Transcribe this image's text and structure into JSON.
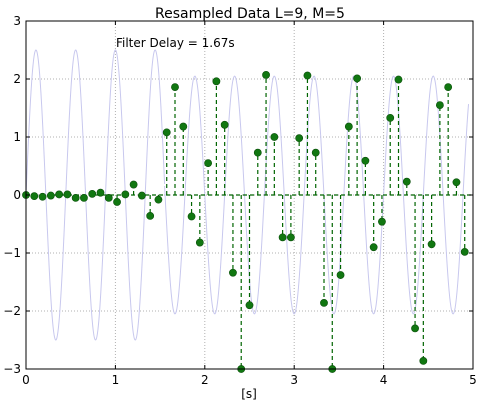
{
  "chart_data": {
    "type": "scatter",
    "title": "Resampled Data L=9, M=5",
    "xlabel": "[s]",
    "ylabel": "",
    "xlim": [
      0,
      5
    ],
    "ylim": [
      -3,
      3
    ],
    "xticks": [
      0,
      1,
      2,
      3,
      4,
      5
    ],
    "yticks": [
      -3,
      -2,
      -1,
      0,
      1,
      2,
      3
    ],
    "grid": true,
    "annotations": [
      {
        "text": "Filter Delay = 1.67s",
        "x": 1.67,
        "y": 2.55
      }
    ],
    "colors": {
      "input_signal": "#c8c8ee",
      "stems": "#006400",
      "markers": "#117711",
      "grid": "#b0b0b0"
    },
    "input_signal": {
      "amplitude": 2.5,
      "period_s": 0.4444,
      "x_start": 0,
      "x_end": 1.55
    },
    "input_signal_tail": {
      "amplitude": 2.05,
      "period_s": 0.4444,
      "x_start": 1.55,
      "x_end": 4.95
    },
    "x": [
      0.0,
      0.0926,
      0.1852,
      0.2778,
      0.3704,
      0.463,
      0.5556,
      0.6481,
      0.7407,
      0.8333,
      0.9259,
      1.0185,
      1.1111,
      1.2037,
      1.2963,
      1.3889,
      1.4815,
      1.5741,
      1.6667,
      1.7593,
      1.8519,
      1.9444,
      2.037,
      2.1296,
      2.2222,
      2.3148,
      2.4074,
      2.5,
      2.5926,
      2.6852,
      2.7778,
      2.8704,
      2.963,
      3.0556,
      3.1481,
      3.2407,
      3.3333,
      3.4259,
      3.5185,
      3.6111,
      3.7037,
      3.7963,
      3.8889,
      3.9815,
      4.0741,
      4.1667,
      4.2593,
      4.3519,
      4.4444,
      4.537,
      4.6296,
      4.7222,
      4.8148,
      4.9074
    ],
    "y": [
      0.0,
      -0.02,
      -0.03,
      -0.01,
      0.01,
      0.01,
      -0.05,
      -0.05,
      0.02,
      0.04,
      -0.05,
      -0.12,
      0.01,
      0.18,
      -0.01,
      -0.36,
      -0.08,
      1.08,
      1.86,
      1.18,
      -0.37,
      -0.82,
      0.55,
      1.96,
      1.21,
      -1.34,
      -3.0,
      -1.9,
      0.73,
      2.07,
      1.0,
      -0.73,
      -0.73,
      0.98,
      2.06,
      0.73,
      -1.86,
      -3.0,
      -1.38,
      1.18,
      2.01,
      0.59,
      -0.9,
      -0.46,
      1.33,
      1.99,
      0.23,
      -2.3,
      -2.86,
      -0.85,
      1.55,
      1.86,
      0.22,
      -0.98
    ]
  }
}
